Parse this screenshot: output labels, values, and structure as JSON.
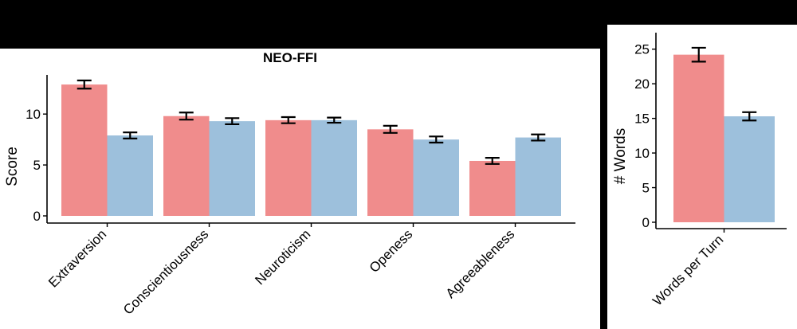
{
  "colors": {
    "series_a": "#F08C8C",
    "series_b": "#9DC0DC",
    "background": "#000000",
    "panel": "#FFFFFF"
  },
  "chart_data": [
    {
      "type": "bar",
      "title": "NEO-FFI",
      "xlabel": "",
      "ylabel": "Score",
      "ylim": [
        0,
        13.3
      ],
      "yticks": [
        0,
        5,
        10
      ],
      "grid": false,
      "categories": [
        "Extraversion",
        "Conscientiousness",
        "Neuroticism",
        "Openess",
        "Agreeableness"
      ],
      "series": [
        {
          "values": [
            12.9,
            9.8,
            9.4,
            8.5,
            5.4
          ],
          "errors": [
            0.4,
            0.35,
            0.3,
            0.35,
            0.3
          ]
        },
        {
          "values": [
            7.9,
            9.3,
            9.4,
            7.5,
            7.7
          ],
          "errors": [
            0.3,
            0.3,
            0.25,
            0.3,
            0.3
          ]
        }
      ]
    },
    {
      "type": "bar",
      "title": "",
      "xlabel": "",
      "ylabel": "# Words",
      "ylim": [
        0,
        26
      ],
      "yticks": [
        0,
        5,
        10,
        15,
        20,
        25
      ],
      "grid": false,
      "categories": [
        "Words per Turn"
      ],
      "series": [
        {
          "values": [
            24.2
          ],
          "errors": [
            1.0
          ]
        },
        {
          "values": [
            15.3
          ],
          "errors": [
            0.6
          ]
        }
      ]
    }
  ]
}
